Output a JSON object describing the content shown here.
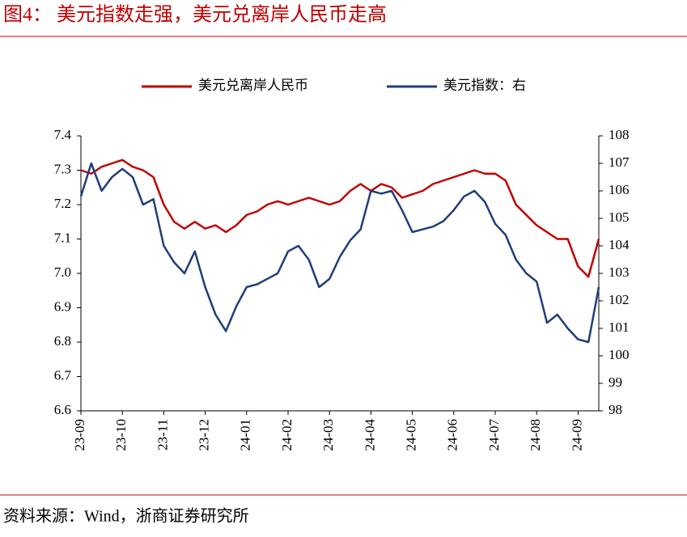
{
  "chart_data": {
    "type": "line",
    "title": "图4：  美元指数走强，美元兑离岸人民币走高",
    "source": "资料来源：Wind，浙商证券研究所",
    "categories": [
      "23-09",
      null,
      null,
      null,
      "23-10",
      null,
      null,
      null,
      "23-11",
      null,
      null,
      null,
      "23-12",
      null,
      null,
      null,
      "24-01",
      null,
      null,
      null,
      "24-02",
      null,
      null,
      null,
      "24-03",
      null,
      null,
      null,
      "24-04",
      null,
      null,
      null,
      "24-05",
      null,
      null,
      null,
      "24-06",
      null,
      null,
      null,
      "24-07",
      null,
      null,
      null,
      "24-08",
      null,
      null,
      null,
      "24-09",
      null,
      null
    ],
    "series": [
      {
        "name": "美元兑离岸人民币",
        "color": "#c00000",
        "values": [
          7.3,
          7.29,
          7.31,
          7.32,
          7.33,
          7.31,
          7.3,
          7.28,
          7.2,
          7.15,
          7.13,
          7.15,
          7.13,
          7.14,
          7.12,
          7.14,
          7.17,
          7.18,
          7.2,
          7.21,
          7.2,
          7.21,
          7.22,
          7.21,
          7.2,
          7.21,
          7.24,
          7.26,
          7.24,
          7.26,
          7.25,
          7.22,
          7.23,
          7.24,
          7.26,
          7.27,
          7.28,
          7.29,
          7.3,
          7.29,
          7.29,
          7.27,
          7.2,
          7.17,
          7.14,
          7.12,
          7.1,
          7.1,
          7.02,
          6.99,
          7.1
        ]
      },
      {
        "name": "美元指数：右",
        "color": "#1f3e7a",
        "axis": "y2",
        "values": [
          105.8,
          107.0,
          106.0,
          106.5,
          106.8,
          106.5,
          105.5,
          105.7,
          104.0,
          103.4,
          103.0,
          103.8,
          102.5,
          101.5,
          100.9,
          101.8,
          102.5,
          102.6,
          102.8,
          103.0,
          103.8,
          104.0,
          103.5,
          102.5,
          102.8,
          103.6,
          104.2,
          104.6,
          106.0,
          105.9,
          106.0,
          105.3,
          104.5,
          104.6,
          104.7,
          104.9,
          105.3,
          105.8,
          106.0,
          105.6,
          104.8,
          104.4,
          103.5,
          103.0,
          102.7,
          101.2,
          101.5,
          101.0,
          100.6,
          100.5,
          102.5
        ]
      }
    ],
    "ylim": [
      6.6,
      7.4
    ],
    "yticks": [
      6.6,
      6.7,
      6.8,
      6.9,
      {
        "value": 7,
        "label": "7.0"
      },
      7.1,
      7.2,
      7.3,
      7.4
    ],
    "y2lim": [
      98,
      108
    ],
    "y2ticks": [
      98,
      99,
      100,
      101,
      102,
      103,
      104,
      105,
      106,
      107,
      108
    ],
    "legend": "top"
  }
}
